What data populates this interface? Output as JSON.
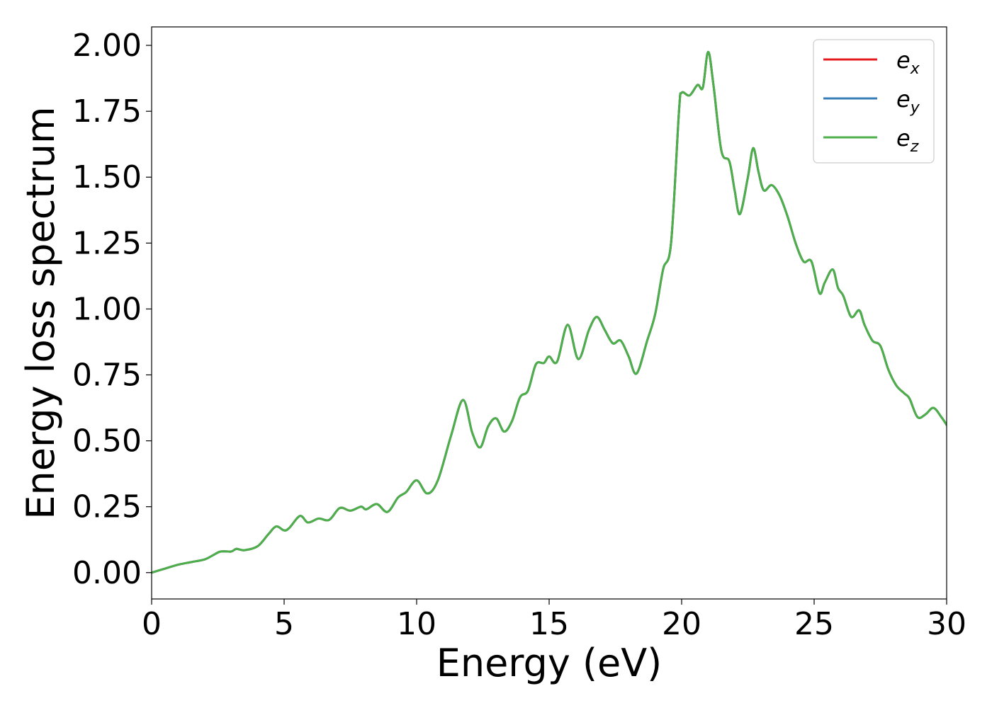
{
  "chart_data": {
    "type": "line",
    "xlabel": "Energy (eV)",
    "ylabel": "Energy loss spectrum",
    "xlim": [
      0,
      30
    ],
    "ylim": [
      -0.1,
      2.07
    ],
    "xticks": [
      0,
      5,
      10,
      15,
      20,
      25,
      30
    ],
    "xtick_labels": [
      "0",
      "5",
      "10",
      "15",
      "20",
      "25",
      "30"
    ],
    "yticks": [
      0,
      0.25,
      0.5,
      0.75,
      1.0,
      1.25,
      1.5,
      1.75,
      2.0
    ],
    "ytick_labels": [
      "0.00",
      "0.25",
      "0.50",
      "0.75",
      "1.00",
      "1.25",
      "1.50",
      "1.75",
      "2.00"
    ],
    "grid": false,
    "legend_position": "top-right",
    "x": [
      0,
      0.5,
      1.0,
      1.5,
      2.0,
      2.3,
      2.6,
      3.0,
      3.2,
      3.5,
      4.0,
      4.4,
      4.7,
      5.0,
      5.2,
      5.6,
      5.9,
      6.3,
      6.7,
      7.1,
      7.5,
      7.9,
      8.1,
      8.5,
      8.9,
      9.3,
      9.6,
      10.0,
      10.4,
      10.8,
      11.3,
      11.75,
      12.1,
      12.4,
      12.7,
      13.0,
      13.3,
      13.6,
      13.9,
      14.2,
      14.5,
      14.8,
      15.0,
      15.3,
      15.7,
      16.1,
      16.5,
      16.8,
      17.1,
      17.4,
      17.7,
      18.0,
      18.3,
      18.7,
      19.0,
      19.3,
      19.6,
      19.9,
      20.0,
      20.3,
      20.6,
      20.8,
      21.0,
      21.2,
      21.5,
      21.8,
      22.0,
      22.2,
      22.5,
      22.7,
      22.9,
      23.1,
      23.4,
      23.7,
      24.0,
      24.3,
      24.6,
      24.9,
      25.2,
      25.4,
      25.7,
      25.9,
      26.1,
      26.4,
      26.7,
      26.9,
      27.2,
      27.5,
      27.8,
      28.1,
      28.4,
      28.6,
      28.9,
      29.2,
      29.5,
      29.8,
      30.0
    ],
    "series": [
      {
        "name": "e_x",
        "label_main": "e",
        "label_sub": "x",
        "color": "#e41a1c",
        "y": [
          0.0,
          0.015,
          0.03,
          0.04,
          0.05,
          0.065,
          0.08,
          0.08,
          0.09,
          0.085,
          0.1,
          0.145,
          0.175,
          0.16,
          0.17,
          0.215,
          0.19,
          0.205,
          0.2,
          0.245,
          0.235,
          0.25,
          0.24,
          0.26,
          0.23,
          0.285,
          0.305,
          0.35,
          0.3,
          0.35,
          0.52,
          0.655,
          0.53,
          0.475,
          0.555,
          0.585,
          0.535,
          0.575,
          0.665,
          0.69,
          0.79,
          0.795,
          0.82,
          0.8,
          0.94,
          0.81,
          0.92,
          0.97,
          0.92,
          0.87,
          0.88,
          0.82,
          0.755,
          0.88,
          0.98,
          1.15,
          1.25,
          1.75,
          1.82,
          1.81,
          1.85,
          1.84,
          1.975,
          1.85,
          1.6,
          1.56,
          1.45,
          1.36,
          1.5,
          1.61,
          1.52,
          1.45,
          1.47,
          1.43,
          1.35,
          1.25,
          1.18,
          1.18,
          1.06,
          1.1,
          1.15,
          1.08,
          1.05,
          0.97,
          0.995,
          0.94,
          0.88,
          0.86,
          0.77,
          0.71,
          0.68,
          0.66,
          0.59,
          0.6,
          0.625,
          0.59,
          0.56
        ]
      },
      {
        "name": "e_y",
        "label_main": "e",
        "label_sub": "y",
        "color": "#377eb8",
        "y": [
          0.0,
          0.015,
          0.03,
          0.04,
          0.05,
          0.065,
          0.08,
          0.08,
          0.09,
          0.085,
          0.1,
          0.145,
          0.175,
          0.16,
          0.17,
          0.215,
          0.19,
          0.205,
          0.2,
          0.245,
          0.235,
          0.25,
          0.24,
          0.26,
          0.23,
          0.285,
          0.305,
          0.35,
          0.3,
          0.35,
          0.52,
          0.655,
          0.53,
          0.475,
          0.555,
          0.585,
          0.535,
          0.575,
          0.665,
          0.69,
          0.79,
          0.795,
          0.82,
          0.8,
          0.94,
          0.81,
          0.92,
          0.97,
          0.92,
          0.87,
          0.88,
          0.82,
          0.755,
          0.88,
          0.98,
          1.15,
          1.25,
          1.75,
          1.82,
          1.81,
          1.85,
          1.84,
          1.975,
          1.85,
          1.6,
          1.56,
          1.45,
          1.36,
          1.5,
          1.61,
          1.52,
          1.45,
          1.47,
          1.43,
          1.35,
          1.25,
          1.18,
          1.18,
          1.06,
          1.1,
          1.15,
          1.08,
          1.05,
          0.97,
          0.995,
          0.94,
          0.88,
          0.86,
          0.77,
          0.71,
          0.68,
          0.66,
          0.59,
          0.6,
          0.625,
          0.59,
          0.56
        ]
      },
      {
        "name": "e_z",
        "label_main": "e",
        "label_sub": "z",
        "color": "#4daf4a",
        "y": [
          0.0,
          0.015,
          0.03,
          0.04,
          0.05,
          0.065,
          0.08,
          0.08,
          0.09,
          0.085,
          0.1,
          0.145,
          0.175,
          0.16,
          0.17,
          0.215,
          0.19,
          0.205,
          0.2,
          0.245,
          0.235,
          0.25,
          0.24,
          0.26,
          0.23,
          0.285,
          0.305,
          0.35,
          0.3,
          0.35,
          0.52,
          0.655,
          0.53,
          0.475,
          0.555,
          0.585,
          0.535,
          0.575,
          0.665,
          0.69,
          0.79,
          0.795,
          0.82,
          0.8,
          0.94,
          0.81,
          0.92,
          0.97,
          0.92,
          0.87,
          0.88,
          0.82,
          0.755,
          0.88,
          0.98,
          1.15,
          1.25,
          1.75,
          1.82,
          1.81,
          1.85,
          1.84,
          1.975,
          1.85,
          1.6,
          1.56,
          1.45,
          1.36,
          1.5,
          1.61,
          1.52,
          1.45,
          1.47,
          1.43,
          1.35,
          1.25,
          1.18,
          1.18,
          1.06,
          1.1,
          1.15,
          1.08,
          1.05,
          0.97,
          0.995,
          0.94,
          0.88,
          0.86,
          0.77,
          0.71,
          0.68,
          0.66,
          0.59,
          0.6,
          0.625,
          0.59,
          0.56
        ]
      }
    ]
  }
}
